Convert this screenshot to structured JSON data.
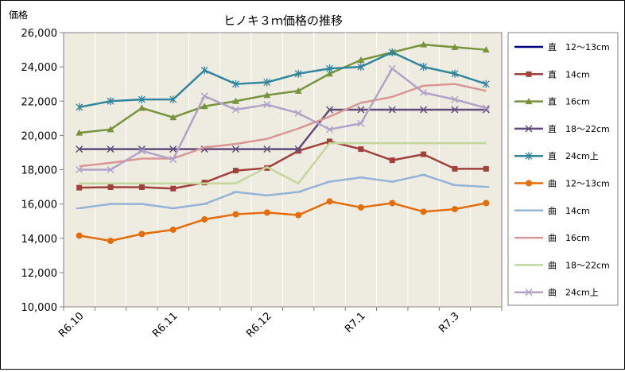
{
  "chart_data": {
    "type": "line",
    "title": "ヒノキ３ｍ価格の推移",
    "ylabel": "価格",
    "xlabel": "",
    "ylim": [
      10000,
      26000
    ],
    "yticks": [
      10000,
      12000,
      14000,
      16000,
      18000,
      20000,
      22000,
      24000,
      26000
    ],
    "ytick_labels": [
      "10,000",
      "12,000",
      "14,000",
      "16,000",
      "18,000",
      "20,000",
      "22,000",
      "24,000",
      "26,000"
    ],
    "x": [
      1,
      2,
      3,
      4,
      5,
      6,
      7,
      8,
      9,
      10,
      11,
      12,
      13,
      14
    ],
    "xtick_labels": [
      "R6.10",
      "R6.11",
      "R6.12",
      "R7.1",
      "R7.3"
    ],
    "xtick_positions": [
      1,
      4,
      7,
      10,
      13
    ],
    "plot_background": "#EEECE1",
    "grid": "vertical",
    "legend_position": "right",
    "series": [
      {
        "name": "直　12～13cm",
        "color": "#000080",
        "marker": "none",
        "values": [
          null,
          null,
          null,
          null,
          null,
          null,
          null,
          null,
          null,
          null,
          null,
          null,
          null,
          null
        ]
      },
      {
        "name": "直　14cm",
        "color": "#A0413B",
        "marker": "square",
        "values": [
          16950,
          16980,
          16980,
          16900,
          17250,
          17950,
          18100,
          19100,
          19650,
          19200,
          18550,
          18900,
          18050,
          18050
        ]
      },
      {
        "name": "直　16cm",
        "color": "#77933C",
        "marker": "triangle",
        "values": [
          20150,
          20350,
          21600,
          21050,
          21700,
          22000,
          22350,
          22600,
          23600,
          24400,
          24850,
          25300,
          25150,
          25000
        ]
      },
      {
        "name": "直　18～22cm",
        "color": "#604A7B",
        "marker": "x",
        "values": [
          19200,
          19200,
          19200,
          19200,
          19200,
          19200,
          19200,
          19200,
          21500,
          21500,
          21500,
          21500,
          21500,
          21500
        ]
      },
      {
        "name": "直　24cm上",
        "color": "#31859C",
        "marker": "star",
        "values": [
          21650,
          22000,
          22100,
          22100,
          23800,
          23000,
          23100,
          23600,
          23900,
          24000,
          24850,
          24000,
          23600,
          23000
        ]
      },
      {
        "name": "曲　12～13cm",
        "color": "#E46C0A",
        "marker": "circle",
        "values": [
          14150,
          13850,
          14250,
          14500,
          15100,
          15400,
          15500,
          15350,
          16150,
          15800,
          16050,
          15550,
          15700,
          16050
        ]
      },
      {
        "name": "曲　14cm",
        "color": "#95B3D7",
        "marker": "dash",
        "values": [
          15750,
          16000,
          16000,
          15750,
          16000,
          16700,
          16500,
          16700,
          17300,
          17550,
          17300,
          17700,
          17100,
          17000
        ]
      },
      {
        "name": "曲　16cm",
        "color": "#D99694",
        "marker": "none",
        "values": [
          18200,
          18400,
          18650,
          18650,
          19300,
          19500,
          19800,
          20400,
          21100,
          21900,
          22250,
          22900,
          23000,
          22600
        ]
      },
      {
        "name": "曲　18～22cm",
        "color": "#C3D69B",
        "marker": "none",
        "values": [
          17200,
          17200,
          17200,
          17200,
          17200,
          17200,
          18150,
          17200,
          19550,
          19550,
          19550,
          19550,
          19550,
          19550
        ]
      },
      {
        "name": "曲　24cm上",
        "color": "#B3A2C7",
        "marker": "x",
        "values": [
          18000,
          18000,
          19100,
          18600,
          22300,
          21500,
          21800,
          21300,
          20350,
          20700,
          23900,
          22500,
          22100,
          21600
        ]
      }
    ]
  }
}
